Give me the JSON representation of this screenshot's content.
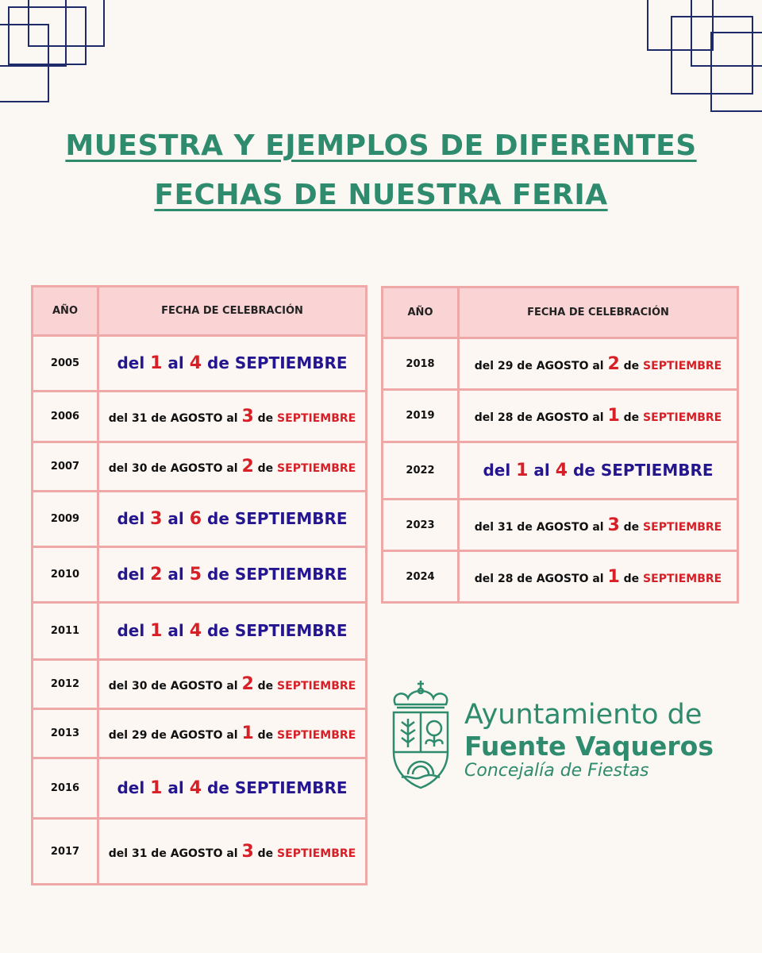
{
  "title": {
    "line1": "MUESTRA Y EJEMPLOS DE DIFERENTES",
    "line2": "FECHAS DE NUESTRA FERIA"
  },
  "headers": {
    "year": "AÑO",
    "date": "FECHA DE CELEBRACIÓN"
  },
  "colors": {
    "title": "#2e8b6e",
    "blue": "#24168f",
    "red": "#d61f26",
    "border": "#efa8a8",
    "header_bg": "#fad3d5"
  },
  "left_table": [
    {
      "year": "2005",
      "parts": [
        {
          "t": "del ",
          "c": "b"
        },
        {
          "t": "1",
          "c": "r"
        },
        {
          "t": " al ",
          "c": "b"
        },
        {
          "t": "4",
          "c": "r"
        },
        {
          "t": " de SEPTIEMBRE",
          "c": "b"
        }
      ]
    },
    {
      "year": "2006",
      "parts": [
        {
          "t": "del 31 de AGOSTO al ",
          "c": "k"
        },
        {
          "t": "3",
          "c": "r"
        },
        {
          "t": " de ",
          "c": "k"
        },
        {
          "t": "SEPTIEMBRE",
          "c": "rs"
        }
      ]
    },
    {
      "year": "2007",
      "parts": [
        {
          "t": "del 30 de AGOSTO al ",
          "c": "k"
        },
        {
          "t": "2",
          "c": "r"
        },
        {
          "t": " de ",
          "c": "k"
        },
        {
          "t": "SEPTIEMBRE",
          "c": "rs"
        }
      ]
    },
    {
      "year": "2009",
      "parts": [
        {
          "t": "del ",
          "c": "b"
        },
        {
          "t": "3",
          "c": "r"
        },
        {
          "t": " al ",
          "c": "b"
        },
        {
          "t": "6",
          "c": "r"
        },
        {
          "t": " de SEPTIEMBRE",
          "c": "b"
        }
      ]
    },
    {
      "year": "2010",
      "parts": [
        {
          "t": "del ",
          "c": "b"
        },
        {
          "t": "2",
          "c": "r"
        },
        {
          "t": " al ",
          "c": "b"
        },
        {
          "t": "5",
          "c": "r"
        },
        {
          "t": " de SEPTIEMBRE",
          "c": "b"
        }
      ]
    },
    {
      "year": "2011",
      "parts": [
        {
          "t": "del ",
          "c": "b"
        },
        {
          "t": "1",
          "c": "r"
        },
        {
          "t": " al ",
          "c": "b"
        },
        {
          "t": "4",
          "c": "r"
        },
        {
          "t": " de SEPTIEMBRE",
          "c": "b"
        }
      ]
    },
    {
      "year": "2012",
      "parts": [
        {
          "t": "del 30 de AGOSTO al ",
          "c": "k"
        },
        {
          "t": "2",
          "c": "r"
        },
        {
          "t": " de ",
          "c": "k"
        },
        {
          "t": "SEPTIEMBRE",
          "c": "rs"
        }
      ]
    },
    {
      "year": "2013",
      "parts": [
        {
          "t": "del 29 de AGOSTO al ",
          "c": "k"
        },
        {
          "t": "1",
          "c": "r"
        },
        {
          "t": " de ",
          "c": "k"
        },
        {
          "t": "SEPTIEMBRE",
          "c": "rs"
        }
      ]
    },
    {
      "year": "2016",
      "parts": [
        {
          "t": "del ",
          "c": "b"
        },
        {
          "t": "1",
          "c": "r"
        },
        {
          "t": " al ",
          "c": "b"
        },
        {
          "t": "4",
          "c": "r"
        },
        {
          "t": " de SEPTIEMBRE",
          "c": "b"
        }
      ]
    },
    {
      "year": "2017",
      "parts": [
        {
          "t": "del 31 de AGOSTO al ",
          "c": "k"
        },
        {
          "t": "3",
          "c": "r"
        },
        {
          "t": " de ",
          "c": "k"
        },
        {
          "t": "SEPTIEMBRE",
          "c": "rs"
        }
      ]
    }
  ],
  "right_table": [
    {
      "year": "2018",
      "parts": [
        {
          "t": "del 29 de AGOSTO al ",
          "c": "k"
        },
        {
          "t": "2",
          "c": "r"
        },
        {
          "t": " de ",
          "c": "k"
        },
        {
          "t": "SEPTIEMBRE",
          "c": "rs"
        }
      ]
    },
    {
      "year": "2019",
      "parts": [
        {
          "t": "del 28 de AGOSTO al ",
          "c": "k"
        },
        {
          "t": "1",
          "c": "r"
        },
        {
          "t": " de ",
          "c": "k"
        },
        {
          "t": "SEPTIEMBRE",
          "c": "rs"
        }
      ]
    },
    {
      "year": "2022",
      "parts": [
        {
          "t": "del ",
          "c": "b"
        },
        {
          "t": "1",
          "c": "r"
        },
        {
          "t": " al ",
          "c": "b"
        },
        {
          "t": "4",
          "c": "r"
        },
        {
          "t": " de SEPTIEMBRE",
          "c": "b"
        }
      ]
    },
    {
      "year": "2023",
      "parts": [
        {
          "t": "del 31 de AGOSTO al ",
          "c": "k"
        },
        {
          "t": "3",
          "c": "r"
        },
        {
          "t": " de ",
          "c": "k"
        },
        {
          "t": "SEPTIEMBRE",
          "c": "rs"
        }
      ]
    },
    {
      "year": "2024",
      "parts": [
        {
          "t": "del 28 de AGOSTO al ",
          "c": "k"
        },
        {
          "t": "1",
          "c": "r"
        },
        {
          "t": " de ",
          "c": "k"
        },
        {
          "t": "SEPTIEMBRE",
          "c": "rs"
        }
      ]
    }
  ],
  "logo": {
    "line1": "Ayuntamiento de",
    "line2": "Fuente Vaqueros",
    "line3": "Concejalía de Fiestas",
    "icon": "coat-of-arms-icon"
  }
}
